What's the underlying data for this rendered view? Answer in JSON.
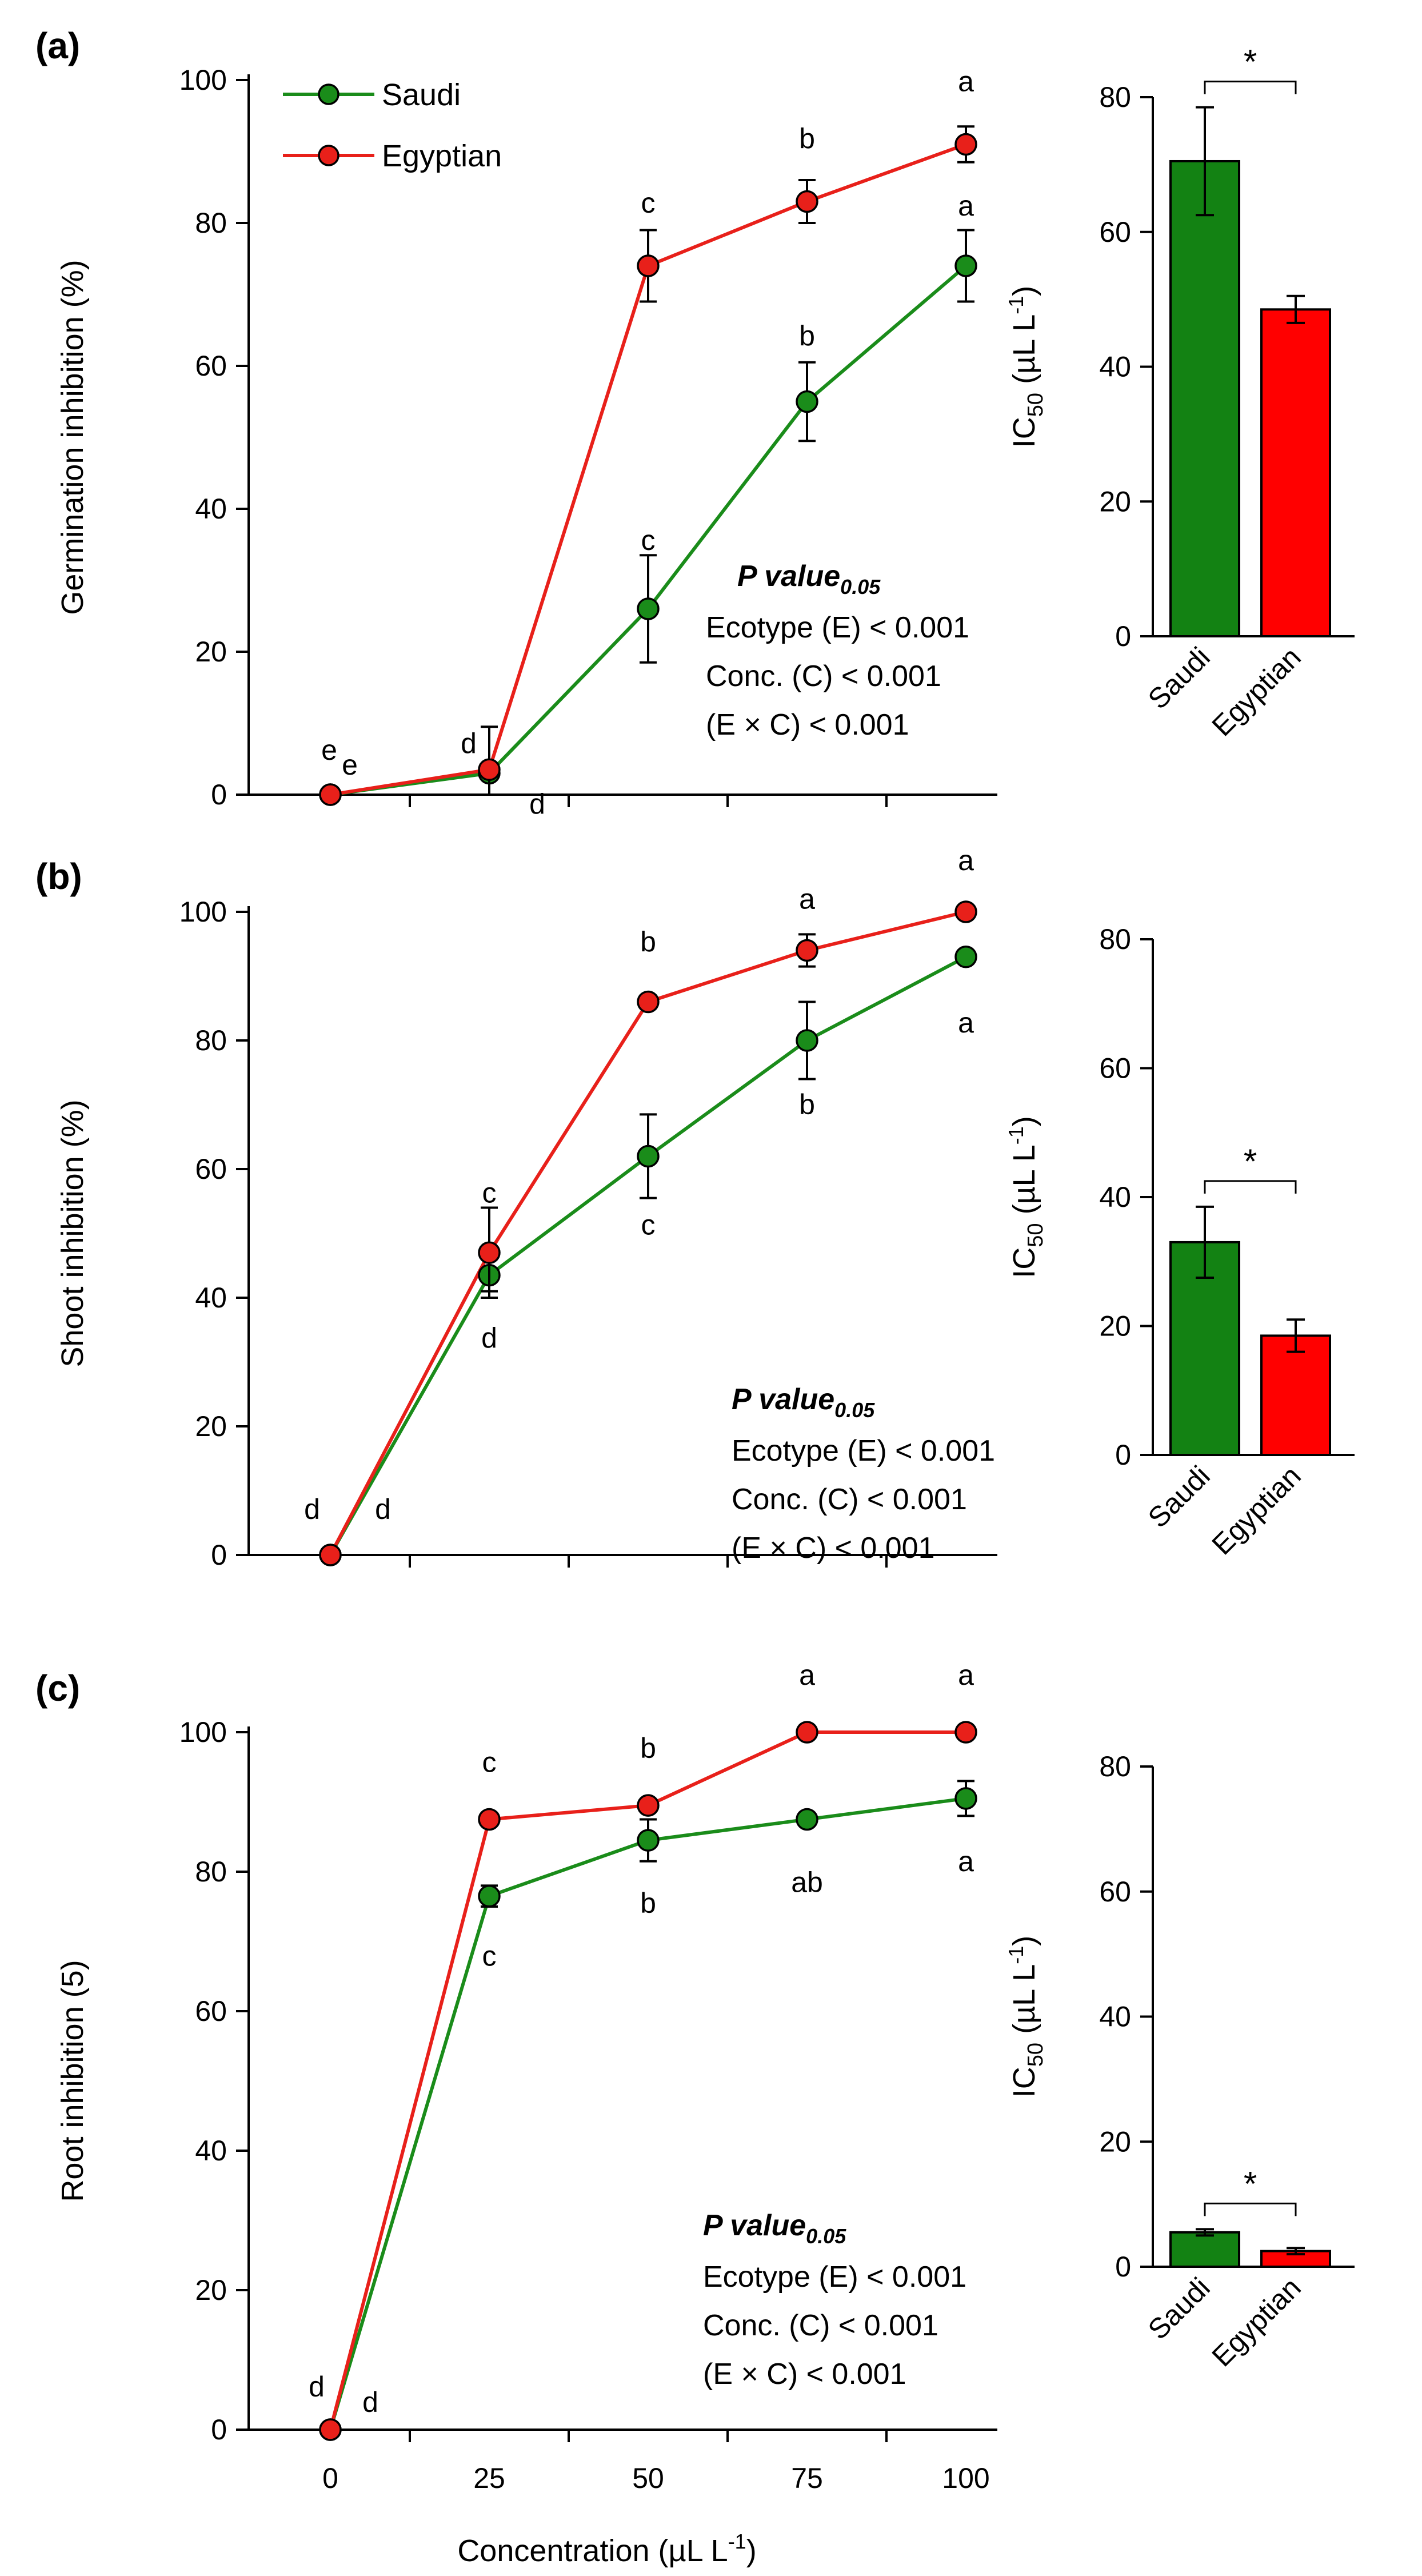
{
  "shared_x_axis": {
    "title": "Concentration (µL L",
    "title_sup": "-1",
    "title_end": ")",
    "ticks": [
      "0",
      "25",
      "50",
      "75",
      "100"
    ]
  },
  "legend": [
    {
      "name": "Saudi",
      "color": "#1a8c1a"
    },
    {
      "name": "Egyptian",
      "color": "#e8201a"
    }
  ],
  "colors": {
    "saudi": "#1a8c1a",
    "egyptian": "#e8201a",
    "saudi_bar": "#138213",
    "egyptian_bar": "#ff0000"
  },
  "bar_axis": {
    "ylabel_main": "IC",
    "ylabel_sub": "50",
    "ylabel_unit": " (µL L",
    "ylabel_sup": "-1",
    "ylabel_end": ")",
    "categories": [
      "Saudi",
      "Egyptian"
    ]
  },
  "chart_data": [
    {
      "panel": "(a)",
      "type": "line",
      "ylabel": "Germination inhibition (%)",
      "ylim": [
        0,
        100
      ],
      "yticks": [
        "0",
        "20",
        "40",
        "60",
        "80",
        "100"
      ],
      "x": [
        0,
        25,
        50,
        75,
        100
      ],
      "series": [
        {
          "name": "Saudi",
          "values": [
            0,
            3,
            26,
            55,
            74
          ],
          "errors": [
            0,
            0,
            7.5,
            5.5,
            5
          ],
          "letters": [
            "e",
            "d",
            "c",
            "b",
            "a"
          ]
        },
        {
          "name": "Egyptian",
          "values": [
            0,
            3.5,
            74,
            83,
            91
          ],
          "errors": [
            0,
            6,
            5,
            3,
            2.5
          ],
          "letters": [
            "e",
            "d",
            "c",
            "b",
            "a"
          ]
        }
      ],
      "p_value": {
        "title": "P value",
        "sub": "0.05",
        "lines": [
          "Ecotype (E) < 0.001",
          "Conc. (C) < 0.001",
          "(E × C) < 0.001"
        ]
      },
      "ic50": {
        "ylim": [
          0,
          80
        ],
        "yticks": [
          "0",
          "20",
          "40",
          "60",
          "80"
        ],
        "values": [
          70.5,
          48.5
        ],
        "errors": [
          8,
          2
        ],
        "significance": "*"
      }
    },
    {
      "panel": "(b)",
      "type": "line",
      "ylabel": "Shoot inhibition (%)",
      "ylim": [
        0,
        100
      ],
      "yticks": [
        "0",
        "20",
        "40",
        "60",
        "80",
        "100"
      ],
      "x": [
        0,
        25,
        50,
        75,
        100
      ],
      "series": [
        {
          "name": "Saudi",
          "values": [
            0,
            43.5,
            62,
            80,
            93
          ],
          "errors": [
            0,
            2.5,
            6.5,
            6,
            1
          ],
          "letters": [
            "d",
            "d",
            "c",
            "b",
            "a"
          ]
        },
        {
          "name": "Egyptian",
          "values": [
            0,
            47,
            86,
            94,
            100
          ],
          "errors": [
            0,
            7,
            1,
            2.5,
            0
          ],
          "letters": [
            "d",
            "c",
            "b",
            "a",
            "a"
          ]
        }
      ],
      "p_value": {
        "title": "P value",
        "sub": "0.05",
        "lines": [
          "Ecotype (E) < 0.001",
          "Conc. (C) < 0.001",
          "(E × C) < 0.001"
        ]
      },
      "ic50": {
        "ylim": [
          0,
          80
        ],
        "yticks": [
          "0",
          "20",
          "40",
          "60",
          "80"
        ],
        "values": [
          33,
          18.5
        ],
        "errors": [
          5.5,
          2.5
        ],
        "significance": "*"
      }
    },
    {
      "panel": "(c)",
      "type": "line",
      "ylabel": "Root inhibition (5)",
      "ylim": [
        0,
        100
      ],
      "yticks": [
        "0",
        "20",
        "40",
        "60",
        "80",
        "100"
      ],
      "x": [
        0,
        25,
        50,
        75,
        100
      ],
      "series": [
        {
          "name": "Saudi",
          "values": [
            0,
            76.5,
            84.5,
            87.5,
            90.5
          ],
          "errors": [
            0,
            1.5,
            3,
            0,
            2.5
          ],
          "letters": [
            "d",
            "c",
            "b",
            "ab",
            "a"
          ]
        },
        {
          "name": "Egyptian",
          "values": [
            0,
            87.5,
            89.5,
            100,
            100
          ],
          "errors": [
            0,
            0,
            0,
            0,
            0
          ],
          "letters": [
            "d",
            "c",
            "b",
            "a",
            "a"
          ]
        }
      ],
      "p_value": {
        "title": "P value",
        "sub": "0.05",
        "lines": [
          "Ecotype (E) < 0.001",
          "Conc. (C) < 0.001",
          "(E × C) < 0.001"
        ]
      },
      "ic50": {
        "ylim": [
          0,
          80
        ],
        "yticks": [
          "0",
          "20",
          "40",
          "60",
          "80"
        ],
        "values": [
          5.5,
          2.5
        ],
        "errors": [
          0.5,
          0.5
        ],
        "significance": "*"
      }
    }
  ]
}
